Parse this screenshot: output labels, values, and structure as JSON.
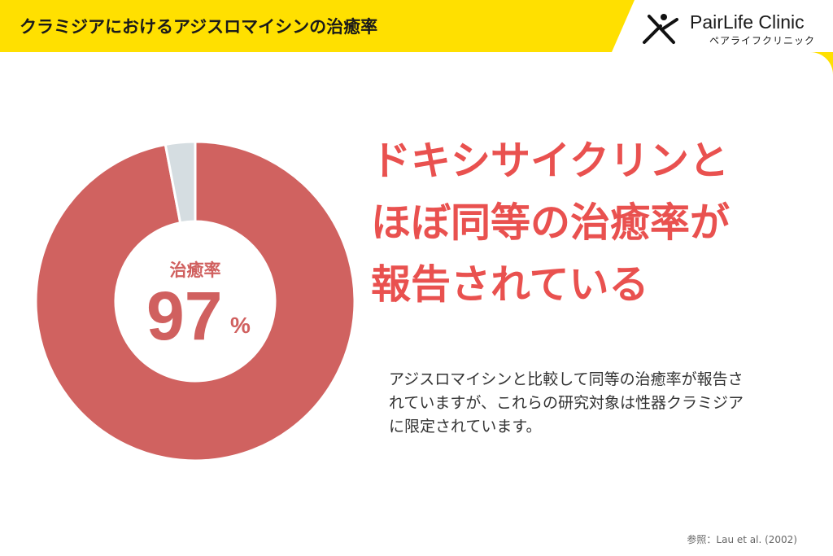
{
  "header": {
    "title": "クラミジアにおけるアジスロマイシンの治癒率"
  },
  "logo": {
    "name": "PairLife Clinic",
    "sub": "ペアライフクリニック"
  },
  "chart_data": {
    "type": "pie",
    "variant": "donut",
    "slices": [
      {
        "label": "治癒率",
        "value": 97
      },
      {
        "label": "",
        "value": 3
      }
    ],
    "center_label": "治癒率",
    "center_value": "97",
    "center_unit": "%",
    "colors": {
      "cured": "#d06260",
      "rest": "#d5dde1",
      "label": "#d0605f"
    }
  },
  "headline": {
    "lines": [
      "ドキシサイクリンと",
      "ほぼ同等の治癒率が",
      "報告されている"
    ],
    "color": "#e9514f"
  },
  "description": {
    "lines": [
      "アジスロマイシンと比較して同等の治癒率が報告さ",
      "れていますが、これらの研究対象は性器クラミジア",
      "に限定されています。"
    ]
  },
  "reference": "参照：Lau et al. (2002)",
  "colors": {
    "background": "#ffe000",
    "panel": "#ffffff"
  }
}
